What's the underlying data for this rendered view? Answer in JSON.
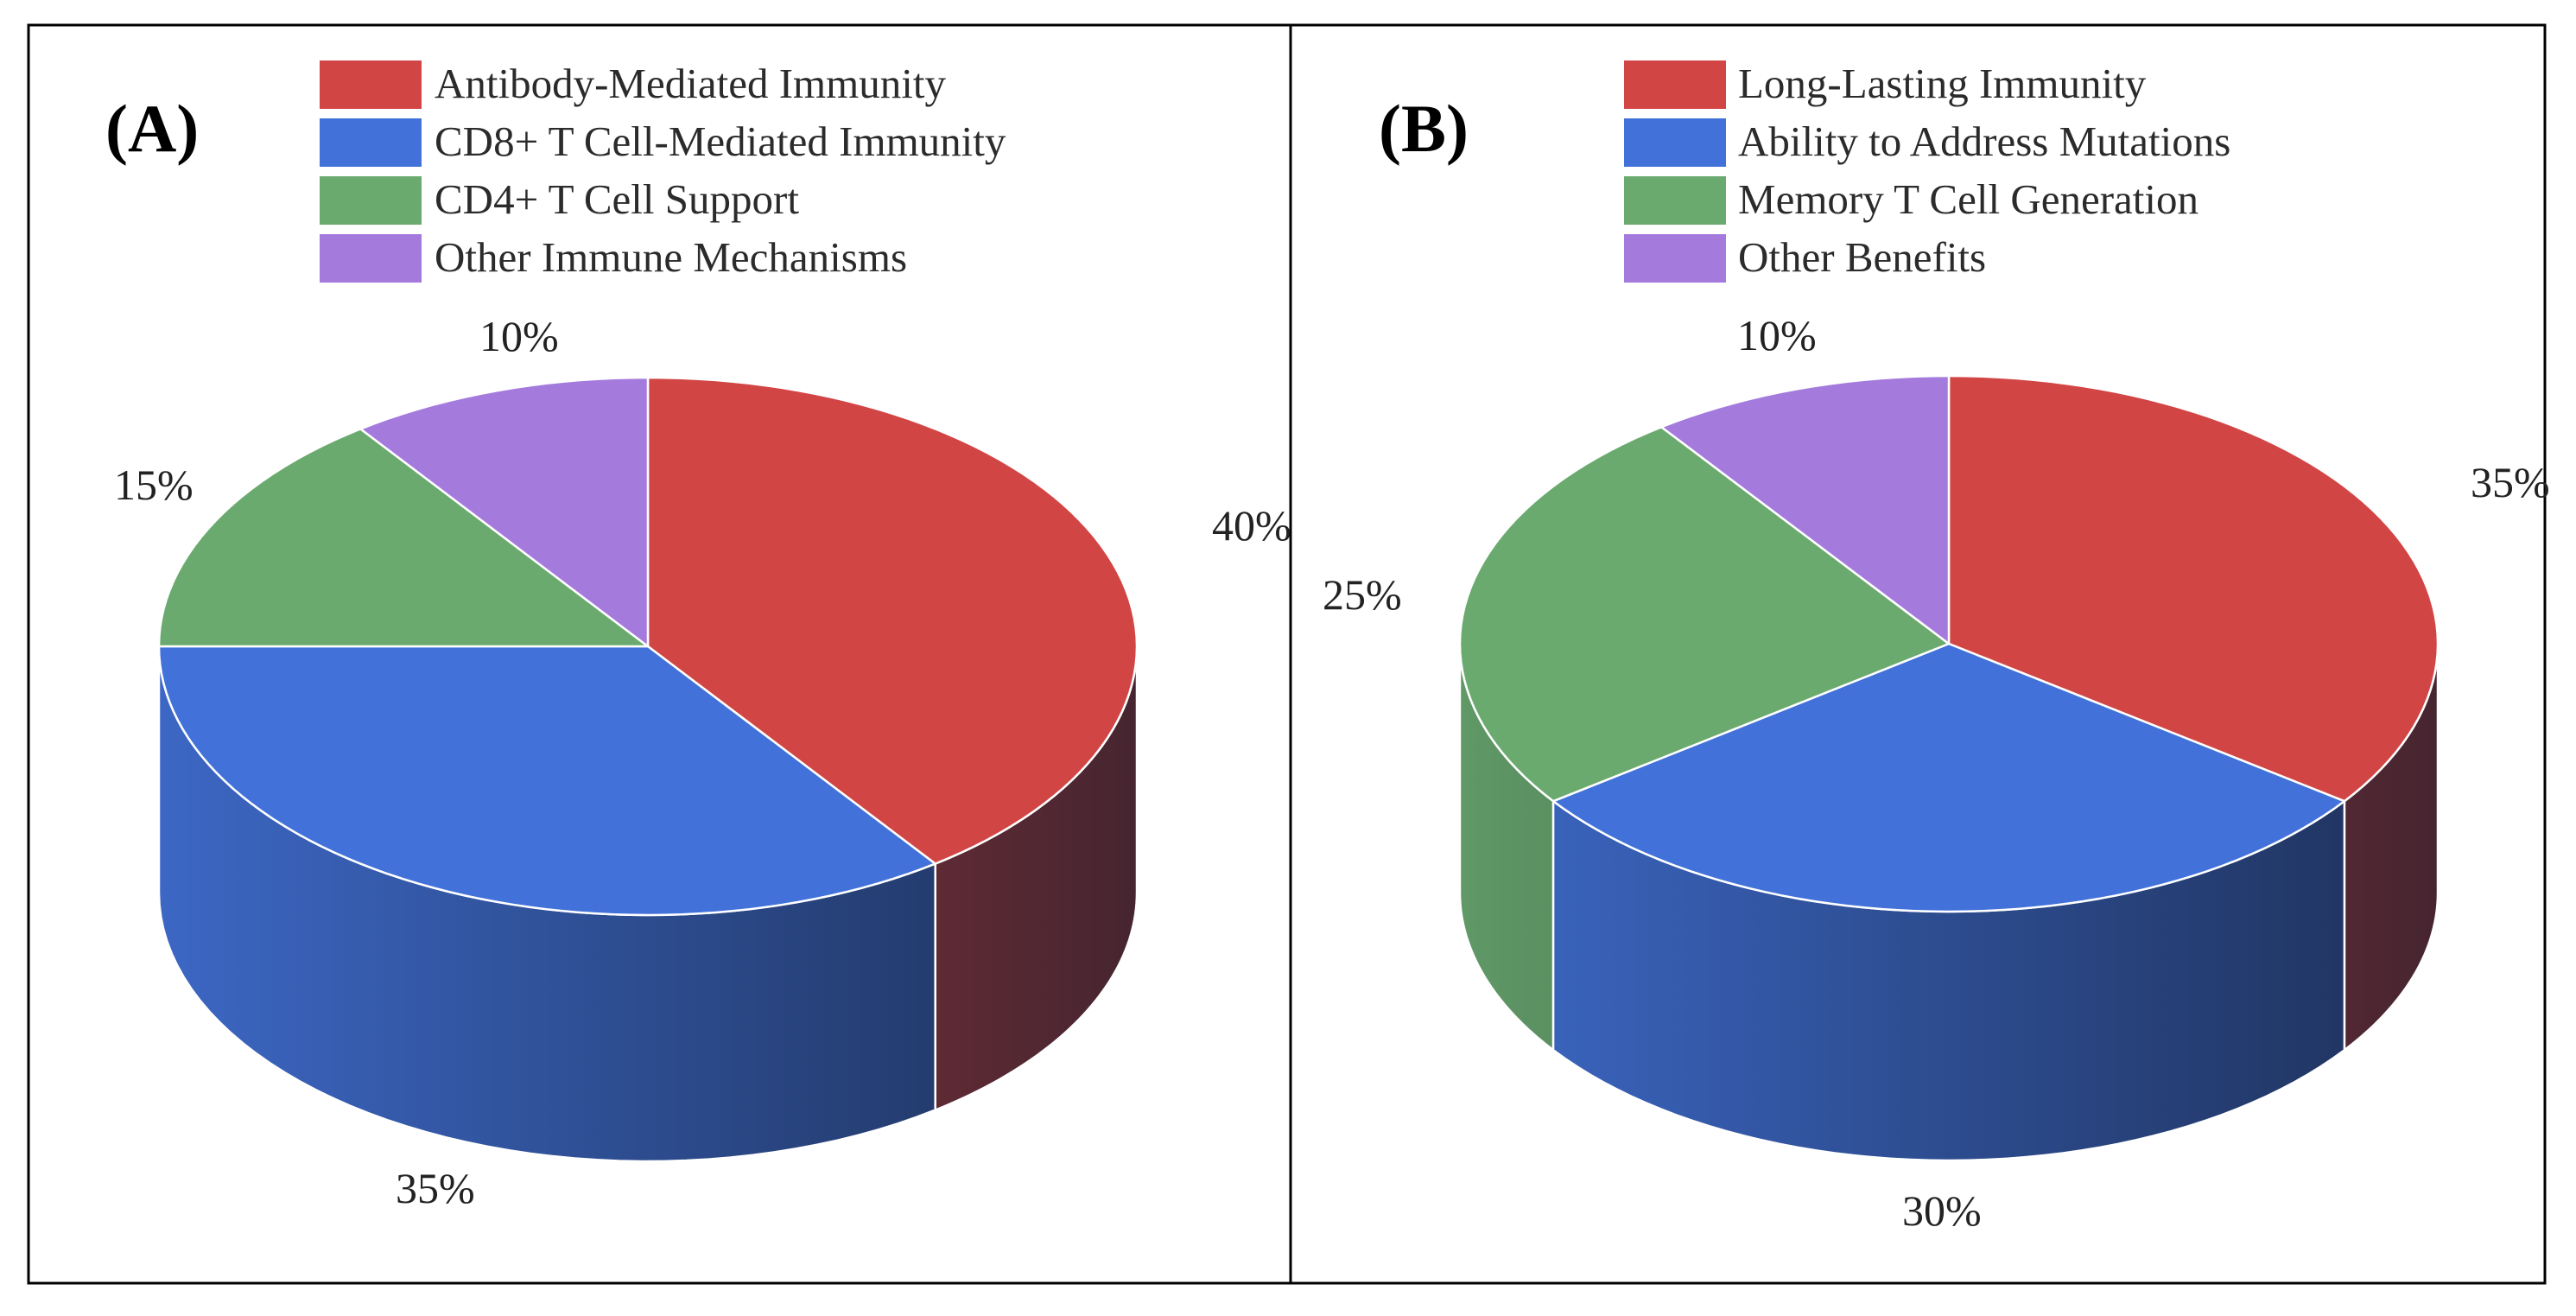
{
  "chart_data": [
    {
      "type": "pie",
      "panel_label": "(A)",
      "legend_position": "top",
      "series": [
        {
          "name": "Antibody-Mediated Immunity",
          "value": 40,
          "label": "40%",
          "color": "#D24545"
        },
        {
          "name": "CD8+ T Cell-Mediated Immunity",
          "value": 35,
          "label": "35%",
          "color": "#4272D9"
        },
        {
          "name": "CD4+ T Cell Support",
          "value": 15,
          "label": "15%",
          "color": "#6BAA6F"
        },
        {
          "name": "Other Immune Mechanisms",
          "value": 10,
          "label": "10%",
          "color": "#A57ADD"
        }
      ]
    },
    {
      "type": "pie",
      "panel_label": "(B)",
      "legend_position": "top",
      "series": [
        {
          "name": "Long-Lasting Immunity",
          "value": 35,
          "label": "35%",
          "color": "#D24545"
        },
        {
          "name": "Ability to Address Mutations",
          "value": 30,
          "label": "30%",
          "color": "#4272D9"
        },
        {
          "name": "Memory T Cell Generation",
          "value": 25,
          "label": "25%",
          "color": "#6BAA6F"
        },
        {
          "name": "Other Benefits",
          "value": 10,
          "label": "10%",
          "color": "#A57ADD"
        }
      ]
    }
  ]
}
